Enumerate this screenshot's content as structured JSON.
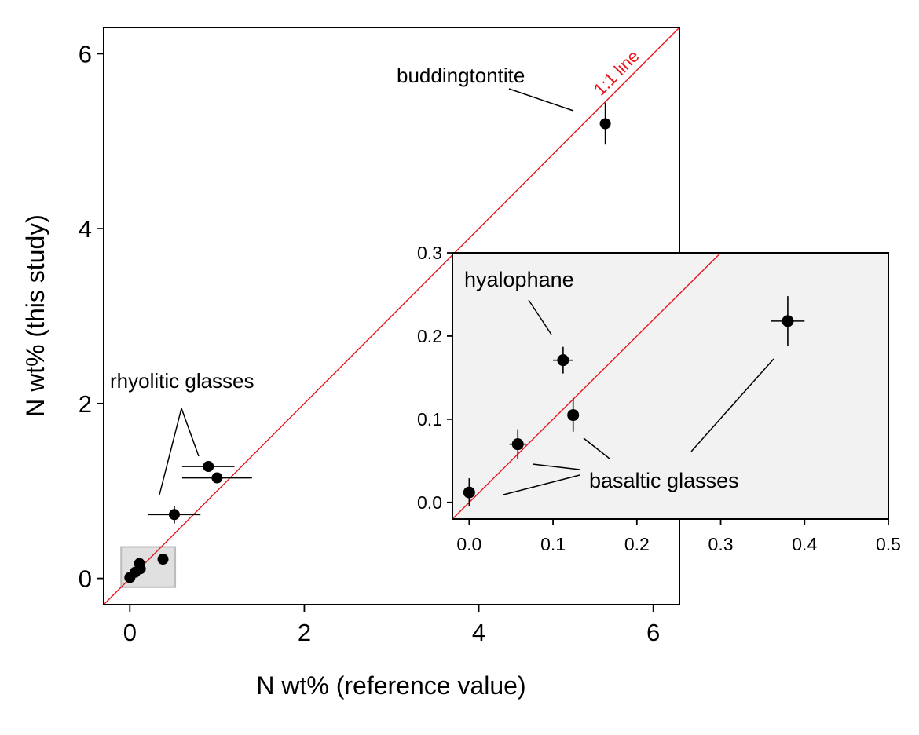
{
  "chart_data": [
    {
      "type": "scatter",
      "title": "",
      "xlabel": "N wt% (reference value)",
      "ylabel": "N wt% (this study)",
      "xlim": [
        -0.3,
        6.3
      ],
      "ylim": [
        -0.3,
        6.3
      ],
      "xticks": [
        "0",
        "2",
        "4",
        "6"
      ],
      "yticks": [
        "0",
        "2",
        "4",
        "6"
      ],
      "grid": false,
      "reference_line": {
        "label": "1:1 line",
        "color": "#e8141b"
      },
      "highlight_box": {
        "x": [
          -0.1,
          0.52
        ],
        "y": [
          -0.1,
          0.36
        ],
        "color": "#cccccc"
      },
      "points": [
        {
          "x": 5.45,
          "y": 5.2,
          "xerr": 0.0,
          "yerr": 0.24
        },
        {
          "x": 0.9,
          "y": 1.28,
          "xerr": 0.3,
          "yerr": 0.0
        },
        {
          "x": 1.0,
          "y": 1.15,
          "xerr": 0.4,
          "yerr": 0.0
        },
        {
          "x": 0.51,
          "y": 0.73,
          "xerr": 0.3,
          "yerr": 0.1
        },
        {
          "x": 0.38,
          "y": 0.22,
          "xerr": 0.0,
          "yerr": 0.0
        },
        {
          "x": 0.11,
          "y": 0.17,
          "xerr": 0.0,
          "yerr": 0.0
        },
        {
          "x": 0.12,
          "y": 0.11,
          "xerr": 0.0,
          "yerr": 0.0
        },
        {
          "x": 0.06,
          "y": 0.07,
          "xerr": 0.0,
          "yerr": 0.0
        },
        {
          "x": 0.0,
          "y": 0.01,
          "xerr": 0.0,
          "yerr": 0.0
        }
      ],
      "annotations": [
        {
          "text": "buddingtontite"
        },
        {
          "text": "rhyolitic glasses"
        }
      ]
    },
    {
      "type": "scatter",
      "title": "",
      "xlim": [
        -0.02,
        0.5
      ],
      "ylim": [
        -0.02,
        0.3
      ],
      "xticks": [
        "0.0",
        "0.1",
        "0.2",
        "0.3",
        "0.4",
        "0.5"
      ],
      "yticks": [
        "0.0",
        "0.1",
        "0.2",
        "0.3"
      ],
      "background": "#f2f2f2",
      "grid": false,
      "points": [
        {
          "x": 0.38,
          "y": 0.218,
          "xerr": 0.02,
          "yerr": 0.03
        },
        {
          "x": 0.112,
          "y": 0.171,
          "xerr": 0.012,
          "yerr": 0.016
        },
        {
          "x": 0.124,
          "y": 0.105,
          "xerr": 0.0,
          "yerr": 0.02
        },
        {
          "x": 0.058,
          "y": 0.07,
          "xerr": 0.01,
          "yerr": 0.018
        },
        {
          "x": 0.0,
          "y": 0.012,
          "xerr": 0.0,
          "yerr": 0.017
        }
      ],
      "annotations": [
        {
          "text": "hyalophane"
        },
        {
          "text": "basaltic glasses"
        }
      ]
    }
  ]
}
